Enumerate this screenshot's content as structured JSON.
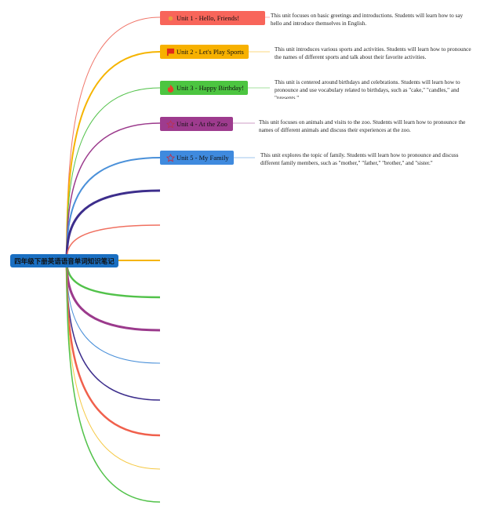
{
  "root": {
    "title": "四年级下册英语语音单词知识笔记",
    "color": "#1a6fc2"
  },
  "units": [
    {
      "label": "Unit 1 - Hello, Friends!",
      "icon": "sun-icon",
      "color": "#f8655a",
      "description": "This unit focuses on basic greetings and introductions. Students will learn how to say hello and introduce themselves in English."
    },
    {
      "label": "Unit 2 - Let's Play Sports",
      "icon": "flag-icon",
      "color": "#f7b100",
      "description": "This unit introduces various sports and activities. Students will learn how to pronounce the names of different sports and talk about their favorite activities."
    },
    {
      "label": "Unit 3 - Happy Birthday!",
      "icon": "fire-icon",
      "color": "#4cc540",
      "description": "This unit is centered around birthdays and celebrations. Students will learn how to pronounce and use vocabulary related to birthdays, such as \"cake,\" \"candles,\" and \"presents.\""
    },
    {
      "label": "Unit 4 - At the Zoo",
      "icon": "star-icon",
      "color": "#9e3b8e",
      "description": "This unit focuses on animals and visits to the zoo. Students will learn how to pronounce the names of different animals and discuss their experiences at the zoo."
    },
    {
      "label": "Unit 5 - My Family",
      "icon": "star-outline-icon",
      "color": "#3f8ade",
      "description": "This unit explores the topic of family. Students will learn how to pronounce and discuss different family members, such as \"mother,\" \"father,\" \"brother,\" and \"sister.\""
    }
  ],
  "branch_colors": [
    "#f0766a",
    "#f5b400",
    "#52c24a",
    "#9b3a8c",
    "#4a90d9",
    "#3d2e8c",
    "#f07060",
    "#f5b400",
    "#52c24a",
    "#9b3a8c",
    "#4a90d9",
    "#3d2e8c",
    "#f0604c",
    "#f5c842",
    "#52c24a"
  ]
}
